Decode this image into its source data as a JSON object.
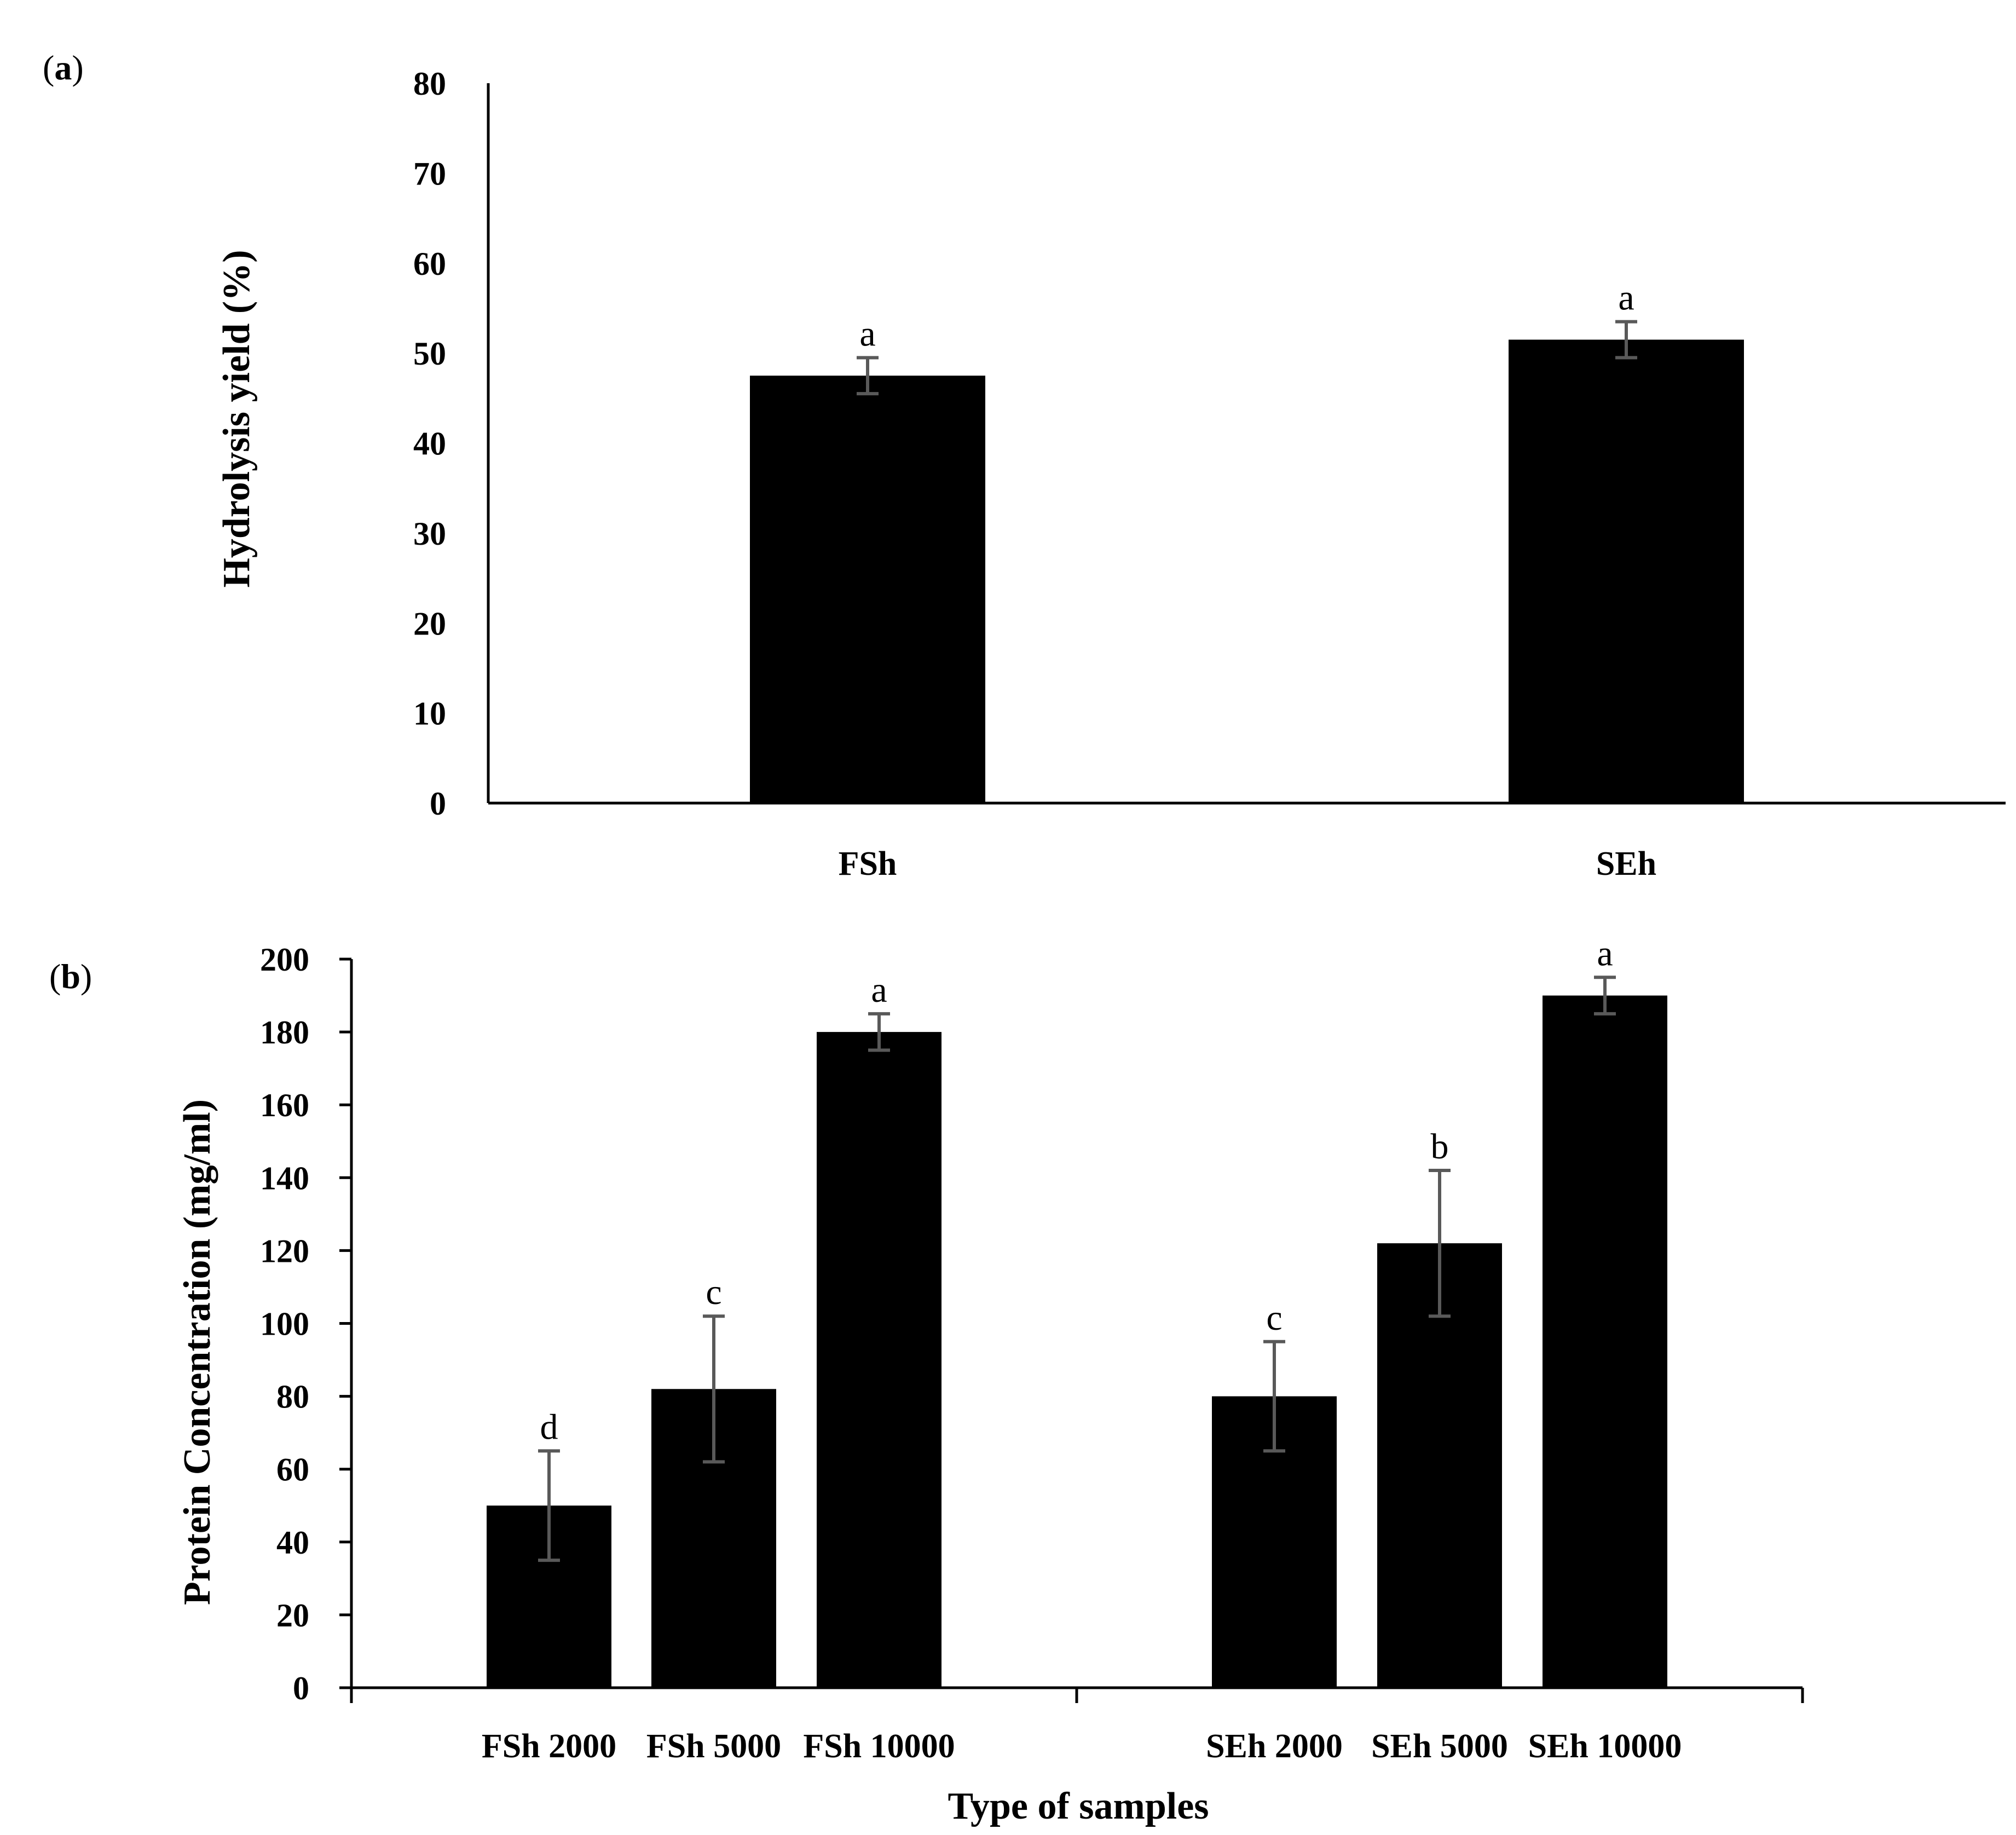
{
  "figure": {
    "panels": [
      {
        "label_open": "(",
        "label_letter": "a",
        "label_close": ")"
      },
      {
        "label_open": "(",
        "label_letter": "b",
        "label_close": ")"
      }
    ]
  },
  "chart_data": [
    {
      "type": "bar",
      "panel": "a",
      "title": "",
      "xlabel": "",
      "ylabel": "Hydrolysis yield (%)",
      "ylim": [
        0,
        80
      ],
      "yticks": [
        0,
        10,
        20,
        30,
        40,
        50,
        60,
        70,
        80
      ],
      "categories": [
        "FSh",
        "SEh"
      ],
      "values": [
        47.5,
        51.5
      ],
      "errors": [
        2,
        2
      ],
      "significance": [
        "a",
        "a"
      ],
      "grid": false,
      "colors": {
        "bar": "#000000",
        "error_bar": "#595959",
        "axis": "#000000"
      }
    },
    {
      "type": "bar",
      "panel": "b",
      "title": "",
      "xlabel": "Type of samples",
      "ylabel": "Protein Concentration (mg/ml)",
      "ylim": [
        0,
        200
      ],
      "yticks": [
        0,
        20,
        40,
        60,
        80,
        100,
        120,
        140,
        160,
        180,
        200
      ],
      "groups": [
        "FSh",
        "SEh"
      ],
      "categories": [
        "FSh 2000",
        "FSh 5000",
        "FSh 10000",
        "SEh 2000",
        "SEh 5000",
        "SEh 10000"
      ],
      "values": [
        50,
        82,
        180,
        80,
        122,
        190
      ],
      "errors": [
        15,
        20,
        5,
        15,
        20,
        5
      ],
      "significance": [
        "d",
        "c",
        "a",
        "c",
        "b",
        "a"
      ],
      "grid": false,
      "colors": {
        "bar": "#000000",
        "error_bar": "#595959",
        "axis": "#000000"
      }
    }
  ]
}
